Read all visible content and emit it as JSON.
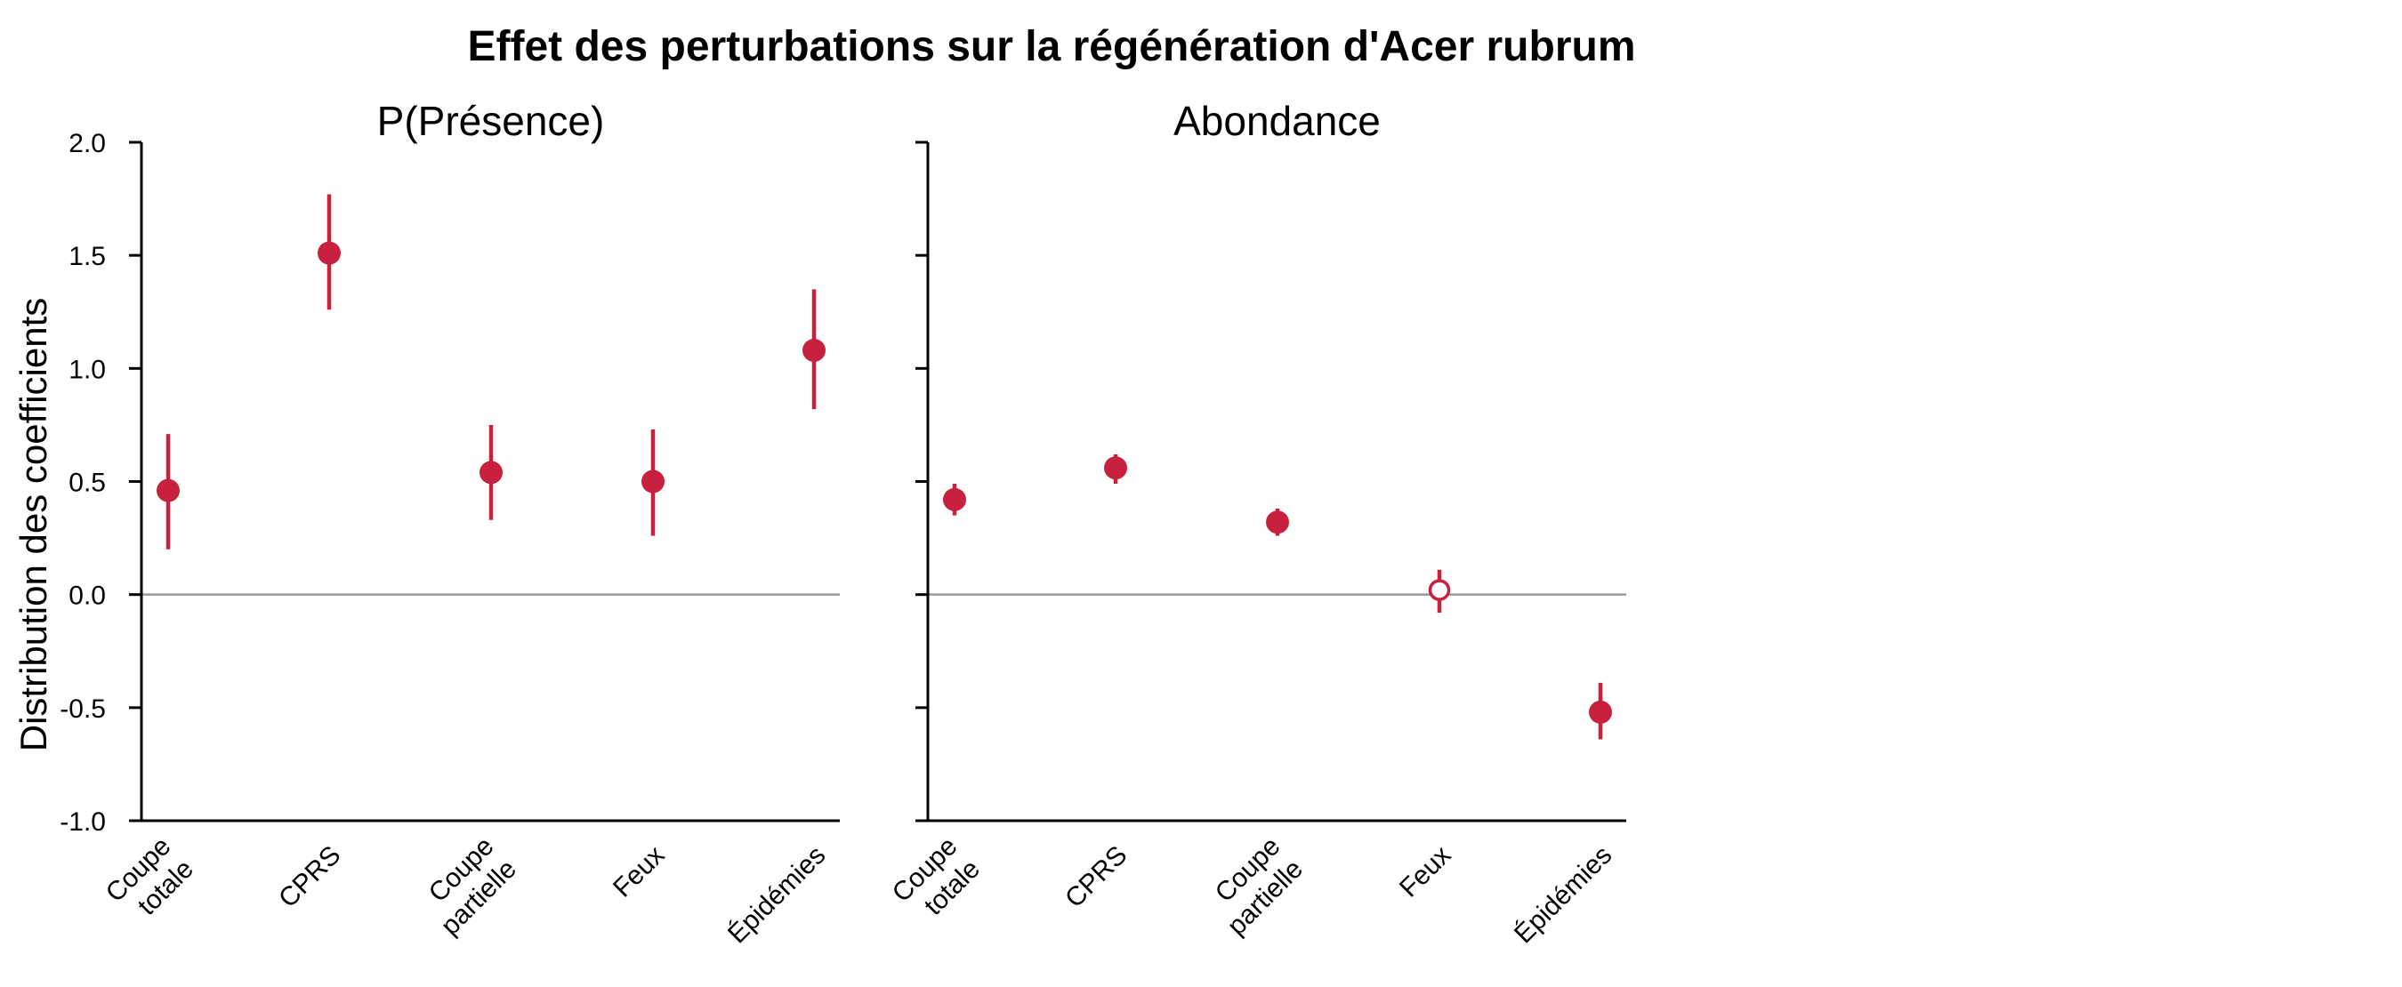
{
  "chart_data": {
    "type": "scatter",
    "title": "Effet des perturbations sur la régénération d'Acer rubrum",
    "ylabel": "Distribution des coefficients",
    "ylim": [
      -1.0,
      2.0
    ],
    "yticks": [
      "2.0",
      "1.5",
      "1.0",
      "0.5",
      "0.0",
      "-0.5",
      "-1.0"
    ],
    "yticks_values": [
      2.0,
      1.5,
      1.0,
      0.5,
      0.0,
      -0.5,
      -1.0
    ],
    "reference_line": 0.0,
    "categories": [
      [
        "Coupe",
        "totale"
      ],
      [
        "CPRS"
      ],
      [
        "Coupe",
        "partielle"
      ],
      [
        "Feux"
      ],
      [
        "Épidémies"
      ]
    ],
    "color": "#c8203f",
    "reference_color": "#999999",
    "panels": [
      {
        "title": "P(Présence)",
        "points": [
          {
            "category": "Coupe totale",
            "estimate": 0.46,
            "low": 0.2,
            "high": 0.71,
            "filled": true
          },
          {
            "category": "CPRS",
            "estimate": 1.51,
            "low": 1.26,
            "high": 1.77,
            "filled": true
          },
          {
            "category": "Coupe partielle",
            "estimate": 0.54,
            "low": 0.33,
            "high": 0.75,
            "filled": true
          },
          {
            "category": "Feux",
            "estimate": 0.5,
            "low": 0.26,
            "high": 0.73,
            "filled": true
          },
          {
            "category": "Épidémies",
            "estimate": 1.08,
            "low": 0.82,
            "high": 1.35,
            "filled": true
          }
        ]
      },
      {
        "title": "Abondance",
        "points": [
          {
            "category": "Coupe totale",
            "estimate": 0.42,
            "low": 0.35,
            "high": 0.49,
            "filled": true
          },
          {
            "category": "CPRS",
            "estimate": 0.56,
            "low": 0.49,
            "high": 0.62,
            "filled": true
          },
          {
            "category": "Coupe partielle",
            "estimate": 0.32,
            "low": 0.26,
            "high": 0.38,
            "filled": true
          },
          {
            "category": "Feux",
            "estimate": 0.02,
            "low": -0.08,
            "high": 0.11,
            "filled": false
          },
          {
            "category": "Épidémies",
            "estimate": -0.52,
            "low": -0.64,
            "high": -0.39,
            "filled": true
          }
        ]
      }
    ]
  }
}
